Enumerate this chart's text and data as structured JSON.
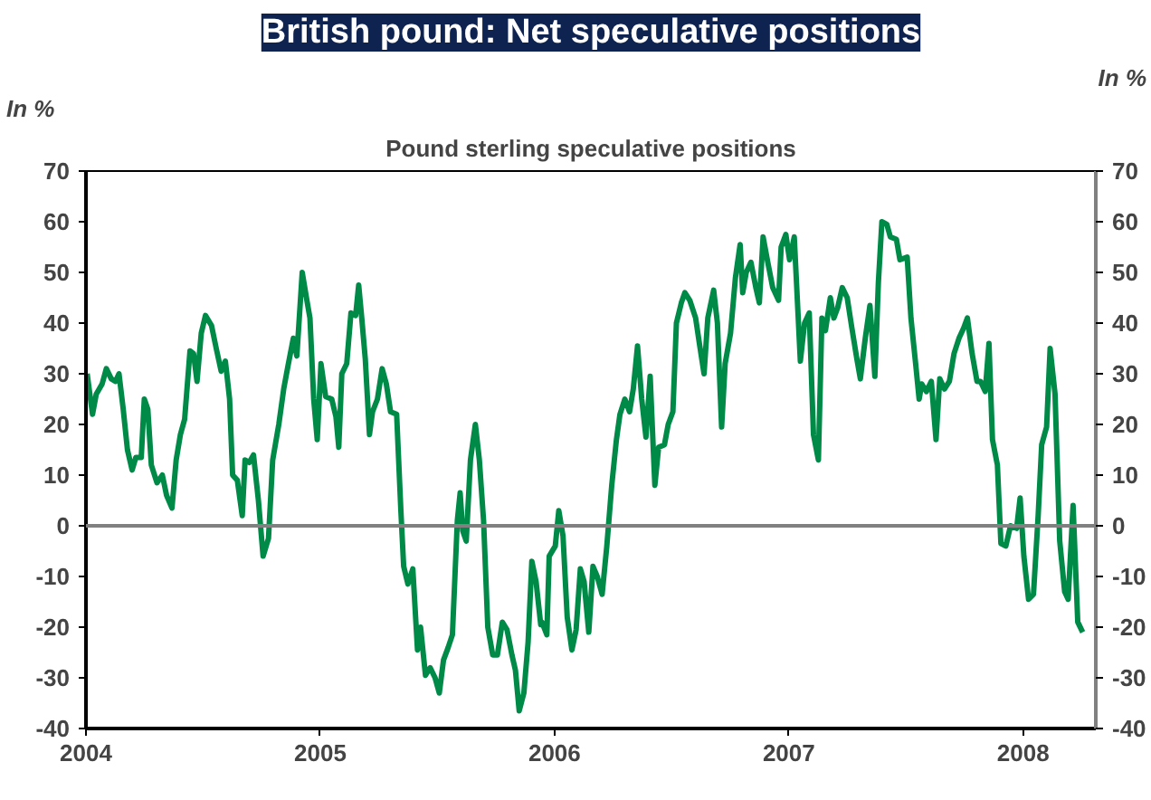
{
  "chart_data": {
    "type": "line",
    "title": "British pound: Net speculative positions",
    "subtitle": "Pound sterling speculative positions",
    "ylabel": "In %",
    "y2label": "In %",
    "x": [
      2004.005,
      2004.028,
      2004.044,
      2004.069,
      2004.087,
      2004.108,
      2004.126,
      2004.141,
      2004.159,
      2004.177,
      2004.197,
      2004.213,
      2004.236,
      2004.249,
      2004.264,
      2004.279,
      2004.303,
      2004.326,
      2004.344,
      2004.367,
      2004.385,
      2004.403,
      2004.421,
      2004.444,
      2004.459,
      2004.474,
      2004.492,
      2004.51,
      2004.536,
      2004.556,
      2004.577,
      2004.595,
      2004.613,
      2004.626,
      2004.646,
      2004.667,
      2004.679,
      2004.697,
      2004.715,
      2004.736,
      2004.756,
      2004.779,
      2004.797,
      2004.823,
      2004.844,
      2004.862,
      2004.885,
      2004.9,
      2004.923,
      2004.941,
      2004.956,
      2004.972,
      2004.987,
      2005.003,
      2005.023,
      2005.049,
      2005.067,
      2005.079,
      2005.092,
      2005.113,
      2005.131,
      2005.151,
      2005.164,
      2005.177,
      2005.192,
      2005.21,
      2005.223,
      2005.244,
      2005.264,
      2005.282,
      2005.3,
      2005.326,
      2005.344,
      2005.356,
      2005.374,
      2005.395,
      2005.415,
      2005.428,
      2005.449,
      2005.469,
      2005.49,
      2005.508,
      2005.526,
      2005.546,
      2005.564,
      2005.585,
      2005.597,
      2005.608,
      2005.623,
      2005.641,
      2005.662,
      2005.679,
      2005.697,
      2005.715,
      2005.736,
      2005.756,
      2005.777,
      2005.797,
      2005.818,
      2005.833,
      2005.849,
      2005.869,
      2005.887,
      2005.903,
      2005.921,
      2005.941,
      2005.946,
      2005.967,
      2005.977,
      2006.003,
      2006.018,
      2006.036,
      2006.054,
      2006.074,
      2006.092,
      2006.11,
      2006.126,
      2006.146,
      2006.164,
      2006.182,
      2006.203,
      2006.223,
      2006.244,
      2006.264,
      2006.279,
      2006.3,
      2006.32,
      2006.336,
      2006.354,
      2006.372,
      2006.39,
      2006.408,
      2006.428,
      2006.444,
      2006.469,
      2006.485,
      2006.505,
      2006.52,
      2006.541,
      2006.556,
      2006.577,
      2006.602,
      2006.618,
      2006.638,
      2006.654,
      2006.679,
      2006.695,
      2006.713,
      2006.728,
      2006.751,
      2006.772,
      2006.792,
      2006.803,
      2006.818,
      2006.838,
      2006.859,
      2006.874,
      2006.89,
      2006.91,
      2006.931,
      2006.956,
      2006.967,
      2006.987,
      2007.003,
      2007.023,
      2007.049,
      2007.067,
      2007.087,
      2007.105,
      2007.126,
      2007.141,
      2007.156,
      2007.177,
      2007.192,
      2007.208,
      2007.228,
      2007.249,
      2007.269,
      2007.29,
      2007.305,
      2007.326,
      2007.346,
      2007.367,
      2007.382,
      2007.397,
      2007.418,
      2007.433,
      2007.459,
      2007.474,
      2007.505,
      2007.521,
      2007.541,
      2007.556,
      2007.567,
      2007.587,
      2007.608,
      2007.628,
      2007.644,
      2007.664,
      2007.685,
      2007.705,
      2007.726,
      2007.746,
      2007.762,
      2007.782,
      2007.803,
      2007.818,
      2007.838,
      2007.854,
      2007.869,
      2007.89,
      2007.905,
      2007.926,
      2007.946,
      2007.972,
      2007.987,
      2008.003,
      2008.023,
      2008.044,
      2008.064,
      2008.079,
      2008.1,
      2008.115,
      2008.136,
      2008.156,
      2008.177,
      2008.192,
      2008.213,
      2008.233,
      2008.254
    ],
    "series": [
      {
        "color": "#008a48",
        "values": [
          30,
          22,
          26,
          28,
          31,
          29,
          28.5,
          30,
          23,
          15,
          11,
          13.5,
          13.5,
          25,
          23,
          12,
          8.5,
          10,
          6,
          3.5,
          13,
          18,
          21,
          34.5,
          34,
          28.5,
          38,
          41.5,
          39.5,
          35,
          30.5,
          32.5,
          25,
          10,
          9,
          2,
          13,
          12.5,
          14,
          5,
          -6,
          -2.5,
          13,
          20,
          27,
          31.5,
          37,
          33.5,
          50,
          45,
          41,
          25,
          17,
          32,
          25.5,
          25,
          21.5,
          15.5,
          30,
          32,
          42,
          41.5,
          47.5,
          41,
          33,
          18,
          22.5,
          25,
          31,
          28,
          22.5,
          22,
          3,
          -8,
          -11.5,
          -8.5,
          -24.5,
          -20,
          -29.5,
          -28,
          -30,
          -33,
          -26.5,
          -24,
          -21.5,
          1,
          6.5,
          -1,
          -3,
          13,
          20,
          13,
          1,
          -20,
          -25.5,
          -25.5,
          -19,
          -20.5,
          -25.5,
          -28.5,
          -36.5,
          -33,
          -23,
          -7,
          -11,
          -19.5,
          -19,
          -21.5,
          -6,
          -4,
          3,
          -2,
          -18,
          -24.5,
          -20.5,
          -8.5,
          -11,
          -21,
          -8,
          -10,
          -13.5,
          -4,
          8,
          17,
          22,
          25,
          22.5,
          27,
          35.5,
          25,
          17.5,
          29.5,
          8,
          15.5,
          16,
          20,
          22.5,
          40,
          44,
          46,
          44.5,
          41,
          36,
          30,
          41,
          46.5,
          40,
          19.5,
          32,
          38,
          49,
          55.5,
          46,
          50,
          52,
          47,
          44,
          57,
          52,
          47,
          44.5,
          55,
          57.5,
          52.5,
          57,
          32.5,
          40,
          42,
          18,
          13,
          41,
          38.5,
          45,
          41,
          43,
          47,
          45,
          39,
          33,
          29,
          37,
          43.5,
          29.5,
          48,
          60,
          59.5,
          57,
          56.5,
          52.5,
          53,
          41,
          32,
          25,
          28,
          26.5,
          28.5,
          17,
          29,
          27,
          28.5,
          34,
          37,
          39,
          41,
          34,
          28.5,
          28.5,
          26.5,
          36,
          17,
          12,
          -3.5,
          -4,
          0,
          -0.5,
          5.5,
          -6,
          -14.5,
          -13.5,
          2,
          16,
          19.5,
          35,
          26,
          -3,
          -13,
          -14.5,
          4,
          -19,
          -21
        ]
      }
    ],
    "xlim": [
      2004,
      2008.31
    ],
    "xticks": [
      {
        "value": 2004,
        "label": "2004"
      },
      {
        "value": 2005,
        "label": "2005"
      },
      {
        "value": 2006,
        "label": "2006"
      },
      {
        "value": 2007,
        "label": "2007"
      },
      {
        "value": 2008,
        "label": "2008"
      }
    ],
    "ylim": [
      -40,
      70
    ],
    "yticks": [
      -40,
      -30,
      -20,
      -10,
      0,
      10,
      20,
      30,
      40,
      50,
      60,
      70
    ],
    "y2lim": [
      -40,
      70
    ],
    "y2ticks": [
      -40,
      -30,
      -20,
      -10,
      0,
      10,
      20,
      30,
      40,
      50,
      60,
      70
    ],
    "ref_lines": [
      {
        "axis": "y",
        "value": 0,
        "color": "#808080"
      }
    ],
    "grid": false,
    "marker": "none",
    "line_style": "solid"
  }
}
